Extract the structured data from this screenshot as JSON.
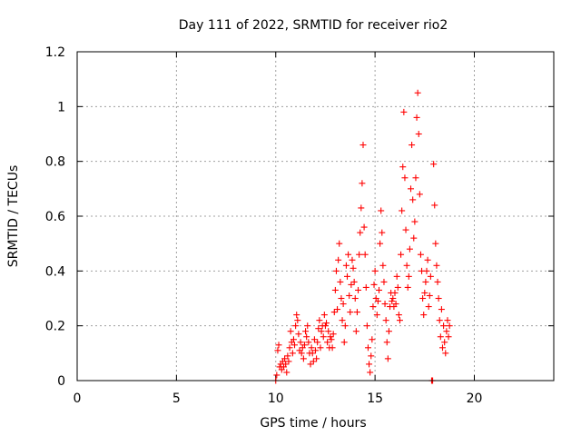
{
  "chart_data": {
    "type": "scatter",
    "title": "Day 111 of 2022, SRMTID for receiver rio2",
    "xlabel": "GPS time / hours",
    "ylabel": "SRMTID / TECUs",
    "xlim": [
      0,
      24
    ],
    "ylim": [
      0,
      1.2
    ],
    "xticks": [
      0,
      5,
      10,
      15,
      20
    ],
    "xtick_labels": [
      "0",
      "5",
      "10",
      "15",
      "20"
    ],
    "yticks": [
      0,
      0.2,
      0.4,
      0.6,
      0.8,
      1.0,
      1.2
    ],
    "ytick_labels": [
      "0",
      "0.2",
      "0.4",
      "0.6",
      "0.8",
      "1",
      "1.2"
    ],
    "grid": true,
    "marker": "+",
    "marker_color": "#ff0000",
    "series": [
      {
        "name": "rio2",
        "points": [
          [
            10.0,
            0.0
          ],
          [
            10.05,
            0.02
          ],
          [
            10.1,
            0.11
          ],
          [
            10.15,
            0.13
          ],
          [
            10.2,
            0.05
          ],
          [
            10.25,
            0.06
          ],
          [
            10.3,
            0.04
          ],
          [
            10.35,
            0.07
          ],
          [
            10.4,
            0.05
          ],
          [
            10.45,
            0.08
          ],
          [
            10.5,
            0.06
          ],
          [
            10.55,
            0.03
          ],
          [
            10.6,
            0.09
          ],
          [
            10.65,
            0.07
          ],
          [
            10.7,
            0.12
          ],
          [
            10.75,
            0.18
          ],
          [
            10.8,
            0.14
          ],
          [
            10.85,
            0.1
          ],
          [
            10.9,
            0.15
          ],
          [
            10.95,
            0.13
          ],
          [
            11.0,
            0.2
          ],
          [
            11.05,
            0.24
          ],
          [
            11.1,
            0.22
          ],
          [
            11.15,
            0.17
          ],
          [
            11.2,
            0.11
          ],
          [
            11.25,
            0.14
          ],
          [
            11.3,
            0.1
          ],
          [
            11.35,
            0.12
          ],
          [
            11.4,
            0.08
          ],
          [
            11.45,
            0.13
          ],
          [
            11.5,
            0.18
          ],
          [
            11.55,
            0.16
          ],
          [
            11.6,
            0.2
          ],
          [
            11.65,
            0.14
          ],
          [
            11.7,
            0.1
          ],
          [
            11.75,
            0.06
          ],
          [
            11.8,
            0.12
          ],
          [
            11.85,
            0.1
          ],
          [
            11.9,
            0.07
          ],
          [
            11.95,
            0.15
          ],
          [
            12.0,
            0.11
          ],
          [
            12.05,
            0.08
          ],
          [
            12.1,
            0.14
          ],
          [
            12.15,
            0.19
          ],
          [
            12.2,
            0.22
          ],
          [
            12.25,
            0.12
          ],
          [
            12.3,
            0.18
          ],
          [
            12.35,
            0.2
          ],
          [
            12.4,
            0.16
          ],
          [
            12.45,
            0.24
          ],
          [
            12.5,
            0.2
          ],
          [
            12.55,
            0.21
          ],
          [
            12.6,
            0.14
          ],
          [
            12.65,
            0.18
          ],
          [
            12.7,
            0.12
          ],
          [
            12.75,
            0.16
          ],
          [
            12.8,
            0.15
          ],
          [
            12.85,
            0.12
          ],
          [
            12.9,
            0.17
          ],
          [
            12.95,
            0.25
          ],
          [
            13.0,
            0.33
          ],
          [
            13.05,
            0.4
          ],
          [
            13.1,
            0.26
          ],
          [
            13.15,
            0.44
          ],
          [
            13.2,
            0.5
          ],
          [
            13.25,
            0.36
          ],
          [
            13.3,
            0.3
          ],
          [
            13.35,
            0.22
          ],
          [
            13.4,
            0.28
          ],
          [
            13.45,
            0.14
          ],
          [
            13.5,
            0.2
          ],
          [
            13.55,
            0.42
          ],
          [
            13.6,
            0.38
          ],
          [
            13.65,
            0.46
          ],
          [
            13.7,
            0.31
          ],
          [
            13.75,
            0.25
          ],
          [
            13.8,
            0.35
          ],
          [
            13.85,
            0.44
          ],
          [
            13.9,
            0.41
          ],
          [
            13.95,
            0.36
          ],
          [
            14.0,
            0.3
          ],
          [
            14.05,
            0.18
          ],
          [
            14.1,
            0.25
          ],
          [
            14.15,
            0.33
          ],
          [
            14.2,
            0.46
          ],
          [
            14.25,
            0.54
          ],
          [
            14.3,
            0.63
          ],
          [
            14.35,
            0.72
          ],
          [
            14.4,
            0.86
          ],
          [
            14.45,
            0.56
          ],
          [
            14.5,
            0.46
          ],
          [
            14.55,
            0.34
          ],
          [
            14.6,
            0.2
          ],
          [
            14.65,
            0.12
          ],
          [
            14.7,
            0.06
          ],
          [
            14.75,
            0.03
          ],
          [
            14.8,
            0.09
          ],
          [
            14.85,
            0.15
          ],
          [
            14.9,
            0.27
          ],
          [
            14.95,
            0.35
          ],
          [
            15.0,
            0.4
          ],
          [
            15.05,
            0.3
          ],
          [
            15.1,
            0.24
          ],
          [
            15.15,
            0.29
          ],
          [
            15.2,
            0.33
          ],
          [
            15.25,
            0.5
          ],
          [
            15.3,
            0.62
          ],
          [
            15.35,
            0.54
          ],
          [
            15.4,
            0.42
          ],
          [
            15.45,
            0.36
          ],
          [
            15.5,
            0.28
          ],
          [
            15.55,
            0.22
          ],
          [
            15.6,
            0.14
          ],
          [
            15.65,
            0.08
          ],
          [
            15.7,
            0.18
          ],
          [
            15.75,
            0.27
          ],
          [
            15.8,
            0.32
          ],
          [
            15.85,
            0.29
          ],
          [
            15.9,
            0.3
          ],
          [
            15.95,
            0.27
          ],
          [
            16.0,
            0.32
          ],
          [
            16.05,
            0.28
          ],
          [
            16.1,
            0.38
          ],
          [
            16.15,
            0.34
          ],
          [
            16.2,
            0.24
          ],
          [
            16.25,
            0.22
          ],
          [
            16.3,
            0.46
          ],
          [
            16.35,
            0.62
          ],
          [
            16.4,
            0.78
          ],
          [
            16.45,
            0.98
          ],
          [
            16.5,
            0.74
          ],
          [
            16.55,
            0.55
          ],
          [
            16.6,
            0.42
          ],
          [
            16.65,
            0.34
          ],
          [
            16.7,
            0.38
          ],
          [
            16.75,
            0.48
          ],
          [
            16.8,
            0.7
          ],
          [
            16.85,
            0.86
          ],
          [
            16.9,
            0.66
          ],
          [
            16.95,
            0.52
          ],
          [
            17.0,
            0.58
          ],
          [
            17.05,
            0.74
          ],
          [
            17.1,
            0.96
          ],
          [
            17.15,
            1.05
          ],
          [
            17.2,
            0.9
          ],
          [
            17.25,
            0.68
          ],
          [
            17.3,
            0.46
          ],
          [
            17.35,
            0.4
          ],
          [
            17.4,
            0.3
          ],
          [
            17.45,
            0.24
          ],
          [
            17.5,
            0.32
          ],
          [
            17.55,
            0.36
          ],
          [
            17.6,
            0.4
          ],
          [
            17.65,
            0.44
          ],
          [
            17.7,
            0.27
          ],
          [
            17.75,
            0.31
          ],
          [
            17.8,
            0.38
          ],
          [
            17.85,
            0.0
          ],
          [
            17.9,
            0.0
          ],
          [
            17.95,
            0.79
          ],
          [
            18.0,
            0.64
          ],
          [
            18.05,
            0.5
          ],
          [
            18.1,
            0.42
          ],
          [
            18.15,
            0.36
          ],
          [
            18.2,
            0.3
          ],
          [
            18.25,
            0.22
          ],
          [
            18.3,
            0.16
          ],
          [
            18.35,
            0.26
          ],
          [
            18.4,
            0.12
          ],
          [
            18.45,
            0.2
          ],
          [
            18.5,
            0.14
          ],
          [
            18.55,
            0.1
          ],
          [
            18.6,
            0.18
          ],
          [
            18.65,
            0.22
          ],
          [
            18.7,
            0.16
          ],
          [
            18.75,
            0.2
          ]
        ]
      }
    ]
  }
}
